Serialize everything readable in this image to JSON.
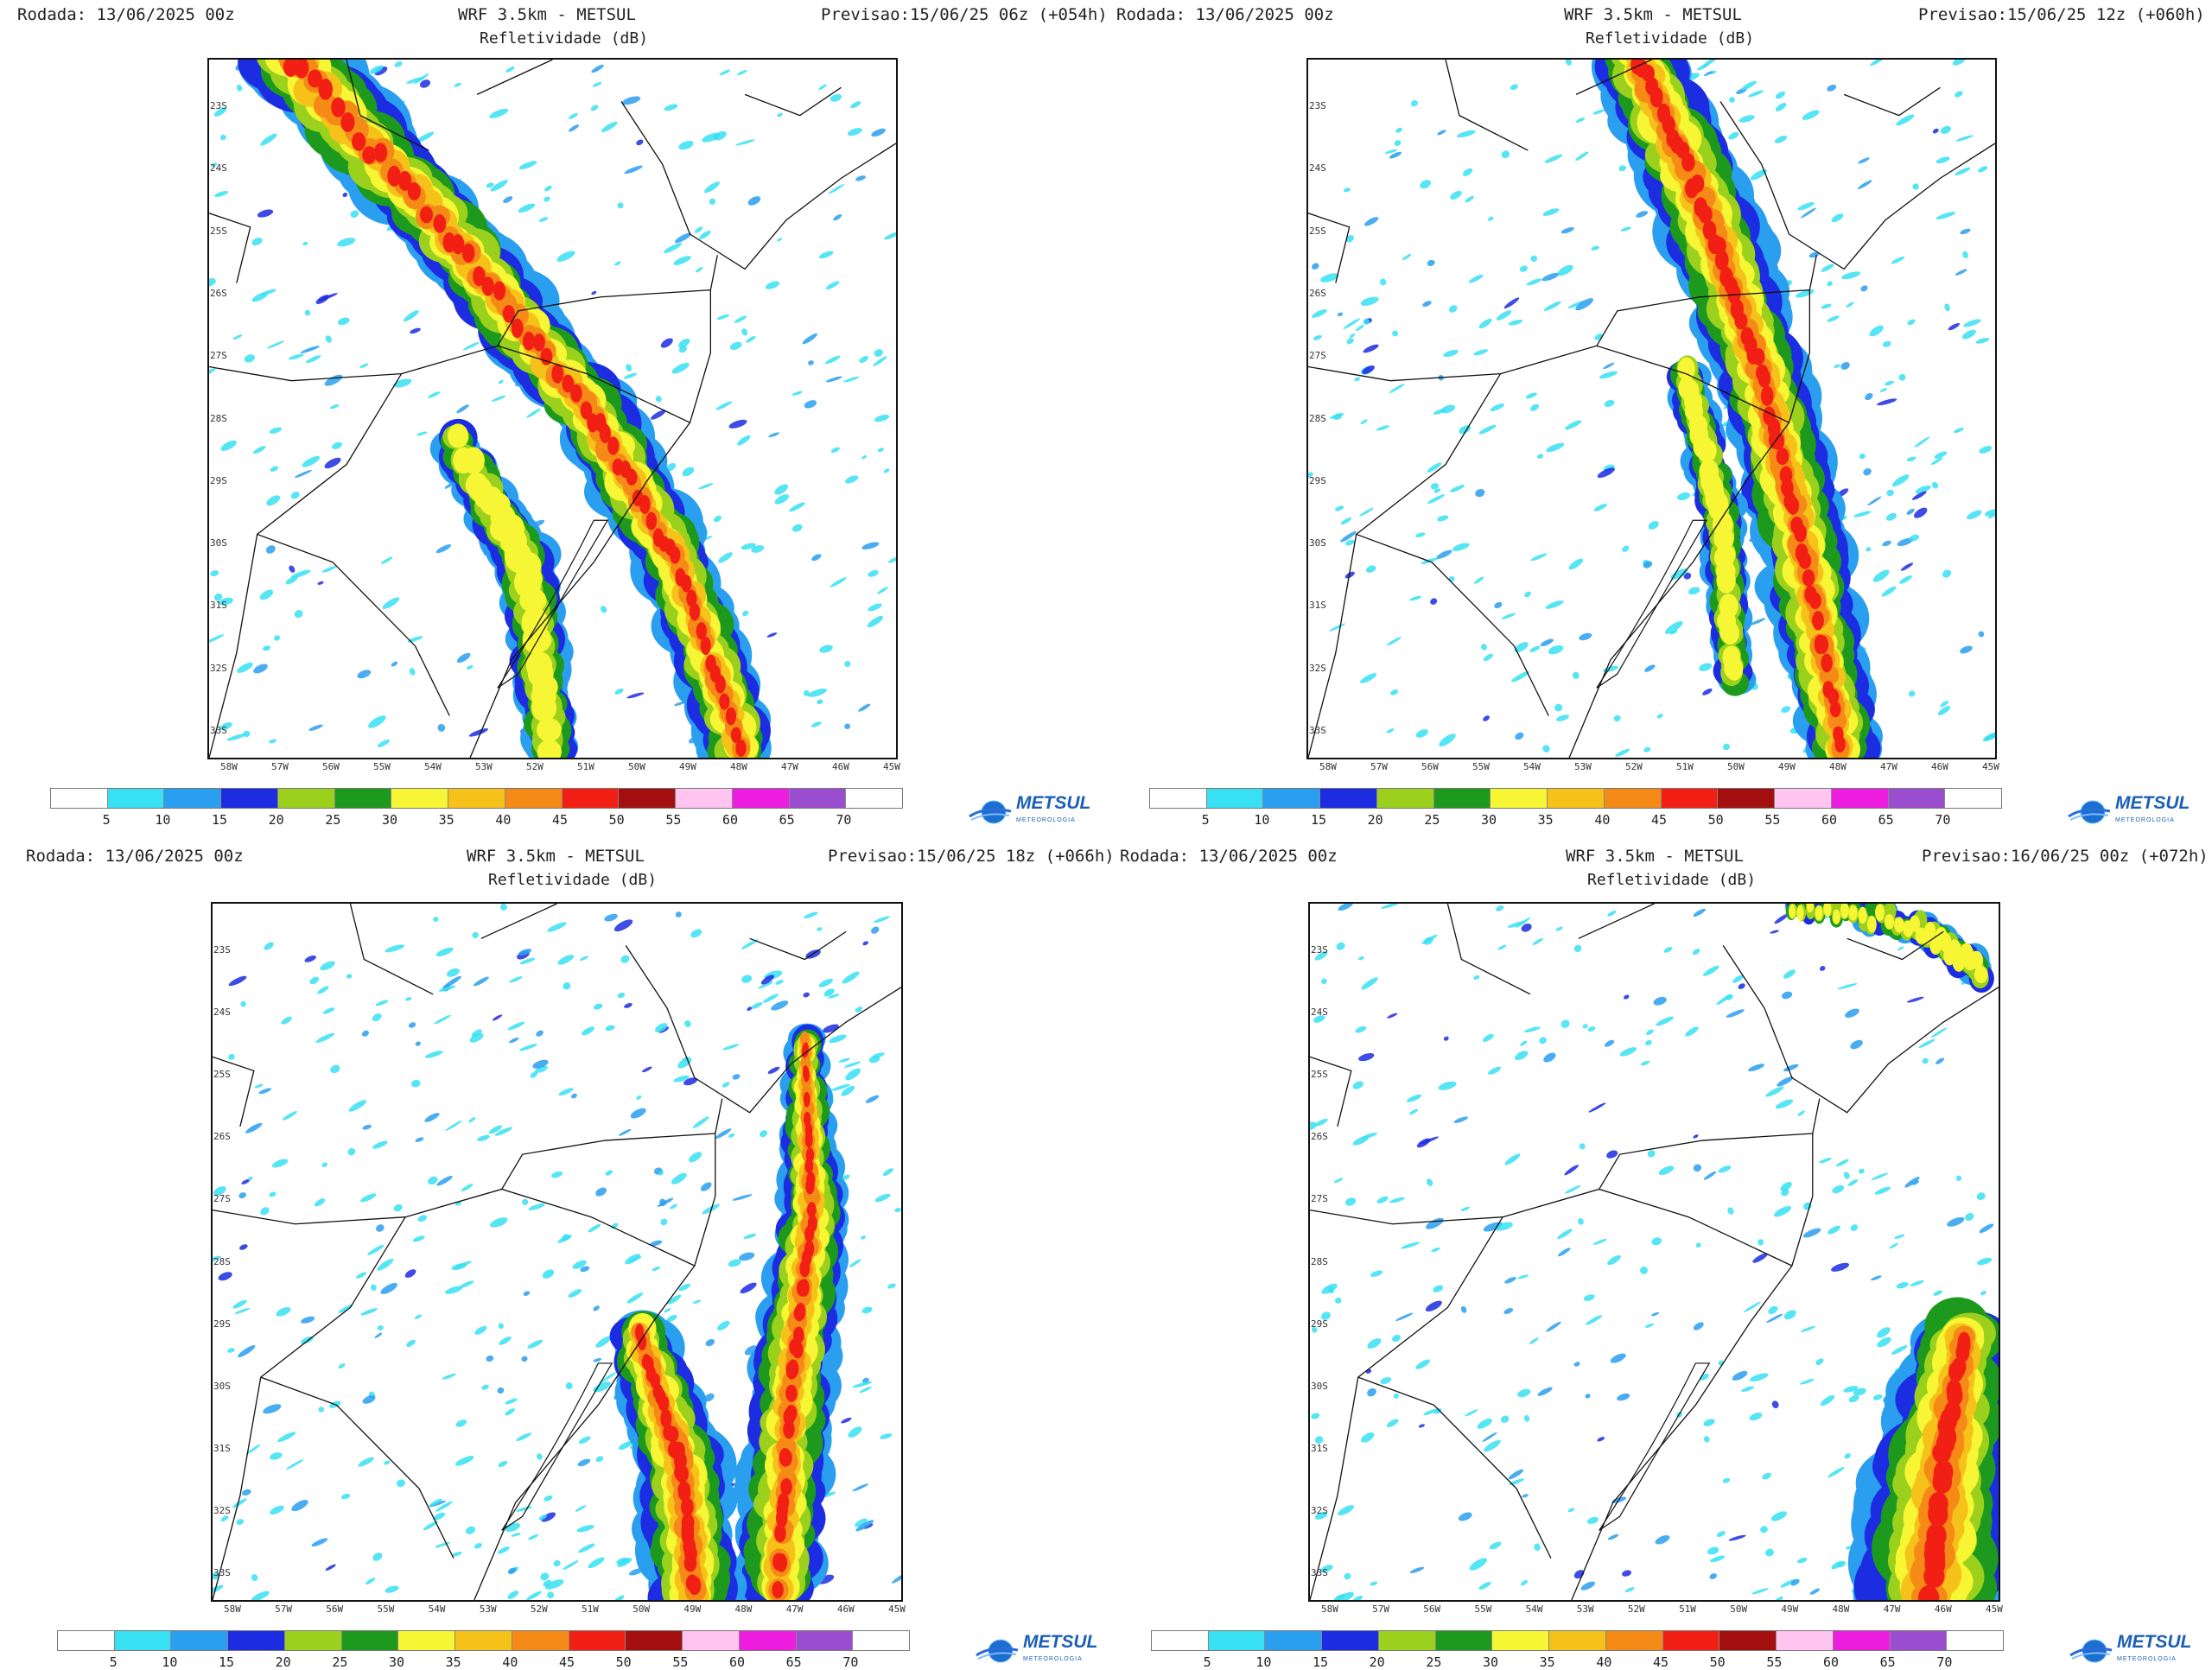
{
  "panels": [
    {
      "run": "Rodada: 13/06/2025 00z",
      "model": "WRF 3.5km - METSUL",
      "field": "Refletividade (dB)",
      "forecast": "Previsao:15/06/25 06z (+054h)"
    },
    {
      "run": "Rodada: 13/06/2025 00z",
      "model": "WRF 3.5km - METSUL",
      "field": "Refletividade (dB)",
      "forecast": "Previsao:15/06/25 12z (+060h)"
    },
    {
      "run": "Rodada: 13/06/2025 00z",
      "model": "WRF 3.5km - METSUL",
      "field": "Refletividade (dB)",
      "forecast": "Previsao:15/06/25 18z (+066h)"
    },
    {
      "run": "Rodada: 13/06/2025 00z",
      "model": "WRF 3.5km - METSUL",
      "field": "Refletividade (dB)",
      "forecast": "Previsao:16/06/25 00z (+072h)"
    }
  ],
  "lat_ticks": [
    "23S",
    "24S",
    "25S",
    "26S",
    "27S",
    "28S",
    "29S",
    "30S",
    "31S",
    "32S",
    "33S"
  ],
  "lon_ticks": [
    "58W",
    "57W",
    "56W",
    "55W",
    "54W",
    "53W",
    "52W",
    "51W",
    "50W",
    "49W",
    "48W",
    "47W",
    "46W",
    "45W"
  ],
  "colorbar": {
    "labels": [
      "5",
      "10",
      "15",
      "20",
      "25",
      "30",
      "35",
      "40",
      "45",
      "50",
      "55",
      "60",
      "65",
      "70"
    ],
    "colors": [
      "#ffffff",
      "#37e0f2",
      "#2a9ff0",
      "#1c2ce0",
      "#9bd11c",
      "#1d9a1d",
      "#f6f634",
      "#f6c21a",
      "#f58a16",
      "#f21f14",
      "#a30e0e",
      "#ffc4f0",
      "#ee1ee0",
      "#9a4ecf",
      "#ffffff"
    ]
  },
  "logo": {
    "name": "METSUL",
    "tagline": "METEOROLOGIA"
  }
}
